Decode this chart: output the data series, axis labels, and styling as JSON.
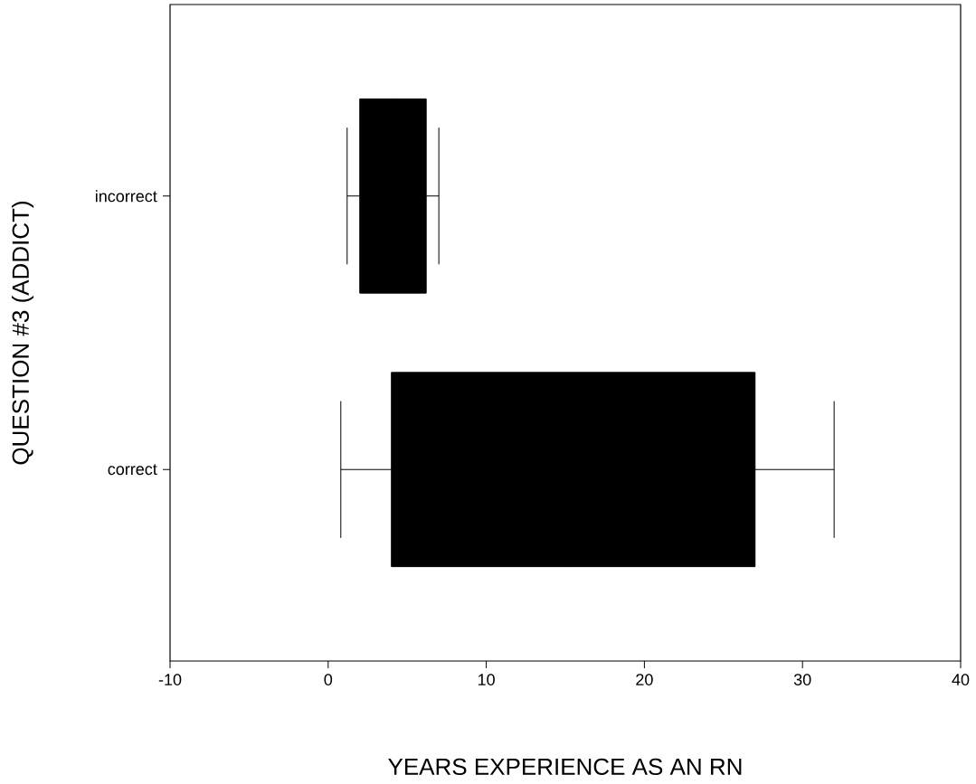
{
  "chart_data": {
    "type": "box",
    "orientation": "horizontal",
    "xlabel": "YEARS EXPERIENCE AS AN RN",
    "ylabel": "QUESTION #3 (ADDICT)",
    "categories": [
      "incorrect",
      "correct"
    ],
    "boxes": [
      {
        "low": 1.2,
        "q1": 2,
        "median": 4,
        "q3": 6.2,
        "high": 7
      },
      {
        "low": 0.8,
        "q1": 4,
        "median": 15,
        "q3": 27,
        "high": 32
      }
    ],
    "color": "#000000",
    "xlim": [
      -10,
      40
    ],
    "xticks": [
      -10,
      0,
      10,
      20,
      30,
      40
    ]
  }
}
